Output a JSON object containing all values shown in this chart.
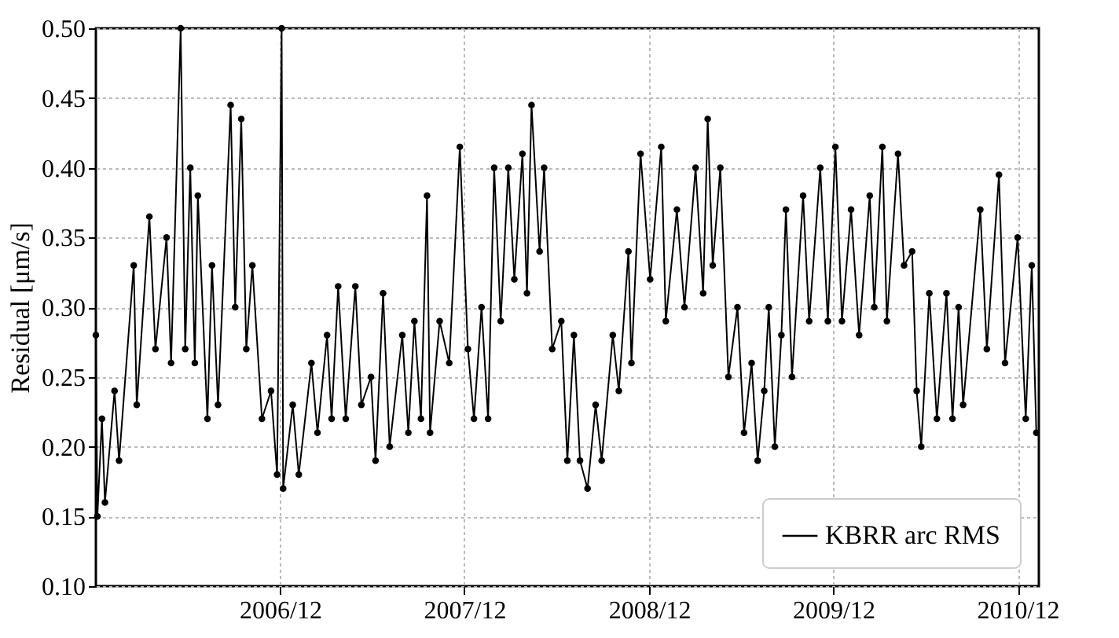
{
  "chart_data": {
    "type": "line",
    "ylabel": "Residual [μm/s]",
    "x": [
      "2005-12-01",
      "2005-12-04",
      "2005-12-13",
      "2005-12-19",
      "2006-01-07",
      "2006-01-16",
      "2006-02-14",
      "2006-02-20",
      "2006-03-17",
      "2006-03-29",
      "2006-04-20",
      "2006-04-29",
      "2006-05-18",
      "2006-05-27",
      "2006-06-06",
      "2006-06-15",
      "2006-06-21",
      "2006-07-10",
      "2006-07-19",
      "2006-07-31",
      "2006-08-25",
      "2006-09-03",
      "2006-09-15",
      "2006-09-25",
      "2006-10-07",
      "2006-10-26",
      "2006-11-13",
      "2006-11-25",
      "2006-12-04",
      "2006-12-07",
      "2006-12-26",
      "2007-01-07",
      "2007-02-01",
      "2007-02-13",
      "2007-03-04",
      "2007-03-13",
      "2007-03-26",
      "2007-04-10",
      "2007-04-29",
      "2007-05-11",
      "2007-05-30",
      "2007-06-08",
      "2007-06-23",
      "2007-07-06",
      "2007-07-31",
      "2007-08-12",
      "2007-08-24",
      "2007-09-06",
      "2007-09-18",
      "2007-09-24",
      "2007-10-13",
      "2007-11-01",
      "2007-11-22",
      "2007-12-08",
      "2007-12-20",
      "2008-01-04",
      "2008-01-17",
      "2008-01-29",
      "2008-02-11",
      "2008-02-26",
      "2008-03-09",
      "2008-03-25",
      "2008-04-03",
      "2008-04-12",
      "2008-04-28",
      "2008-05-07",
      "2008-05-23",
      "2008-06-10",
      "2008-06-22",
      "2008-07-05",
      "2008-07-17",
      "2008-08-01",
      "2008-08-17",
      "2008-08-29",
      "2008-09-20",
      "2008-10-02",
      "2008-10-21",
      "2008-10-27",
      "2008-11-14",
      "2008-12-03",
      "2008-12-25",
      "2009-01-03",
      "2009-01-25",
      "2009-02-09",
      "2009-03-03",
      "2009-03-18",
      "2009-03-27",
      "2009-04-06",
      "2009-04-21",
      "2009-05-07",
      "2009-05-25",
      "2009-06-07",
      "2009-06-22",
      "2009-07-04",
      "2009-07-17",
      "2009-07-26",
      "2009-08-07",
      "2009-08-20",
      "2009-08-29",
      "2009-09-10",
      "2009-10-02",
      "2009-10-14",
      "2009-11-05",
      "2009-11-20",
      "2009-12-05",
      "2009-12-18",
      "2010-01-05",
      "2010-01-21",
      "2010-02-11",
      "2010-02-20",
      "2010-03-08",
      "2010-03-17",
      "2010-04-08",
      "2010-04-20",
      "2010-05-06",
      "2010-05-15",
      "2010-05-24",
      "2010-06-09",
      "2010-06-24",
      "2010-07-13",
      "2010-07-25",
      "2010-08-06",
      "2010-08-15",
      "2010-09-18",
      "2010-10-01",
      "2010-10-25",
      "2010-11-06",
      "2010-12-01",
      "2010-12-17",
      "2010-12-29",
      "2011-01-07"
    ],
    "series": [
      {
        "name": "KBRR arc RMS",
        "color": "#000000",
        "values": [
          0.28,
          0.15,
          0.22,
          0.16,
          0.24,
          0.19,
          0.33,
          0.23,
          0.365,
          0.27,
          0.35,
          0.26,
          0.5,
          0.27,
          0.4,
          0.26,
          0.38,
          0.22,
          0.33,
          0.23,
          0.445,
          0.3,
          0.435,
          0.27,
          0.33,
          0.22,
          0.24,
          0.18,
          0.5,
          0.17,
          0.23,
          0.18,
          0.26,
          0.21,
          0.28,
          0.22,
          0.315,
          0.22,
          0.315,
          0.23,
          0.25,
          0.19,
          0.31,
          0.2,
          0.28,
          0.21,
          0.29,
          0.22,
          0.38,
          0.21,
          0.29,
          0.26,
          0.415,
          0.27,
          0.22,
          0.3,
          0.22,
          0.4,
          0.29,
          0.4,
          0.32,
          0.41,
          0.31,
          0.445,
          0.34,
          0.4,
          0.27,
          0.29,
          0.19,
          0.28,
          0.19,
          0.17,
          0.23,
          0.19,
          0.28,
          0.24,
          0.34,
          0.26,
          0.41,
          0.32,
          0.415,
          0.29,
          0.37,
          0.3,
          0.4,
          0.31,
          0.435,
          0.33,
          0.4,
          0.25,
          0.3,
          0.21,
          0.26,
          0.19,
          0.24,
          0.3,
          0.2,
          0.28,
          0.37,
          0.25,
          0.38,
          0.29,
          0.4,
          0.29,
          0.415,
          0.29,
          0.37,
          0.28,
          0.38,
          0.3,
          0.415,
          0.29,
          0.41,
          0.33,
          0.34,
          0.24,
          0.2,
          0.31,
          0.22,
          0.31,
          0.22,
          0.3,
          0.23,
          0.37,
          0.27,
          0.395,
          0.26,
          0.35,
          0.22,
          0.33,
          0.21
        ]
      }
    ],
    "xlim": [
      "2005-12-01",
      "2011-01-12"
    ],
    "xticks": [
      {
        "value": "2006-12-01",
        "label": "2006/12"
      },
      {
        "value": "2007-12-01",
        "label": "2007/12"
      },
      {
        "value": "2008-12-01",
        "label": "2008/12"
      },
      {
        "value": "2009-12-01",
        "label": "2009/12"
      },
      {
        "value": "2010-12-01",
        "label": "2010/12"
      }
    ],
    "ylim": [
      0.1,
      0.5
    ],
    "yticks": [
      {
        "value": 0.1,
        "label": "0.10"
      },
      {
        "value": 0.15,
        "label": "0.15"
      },
      {
        "value": 0.2,
        "label": "0.20"
      },
      {
        "value": 0.25,
        "label": "0.25"
      },
      {
        "value": 0.3,
        "label": "0.30"
      },
      {
        "value": 0.35,
        "label": "0.35"
      },
      {
        "value": 0.4,
        "label": "0.40"
      },
      {
        "value": 0.45,
        "label": "0.45"
      },
      {
        "value": 0.5,
        "label": "0.50"
      }
    ],
    "grid": true,
    "legend": "bottom right",
    "marker": "circle",
    "line_style": "solid"
  }
}
